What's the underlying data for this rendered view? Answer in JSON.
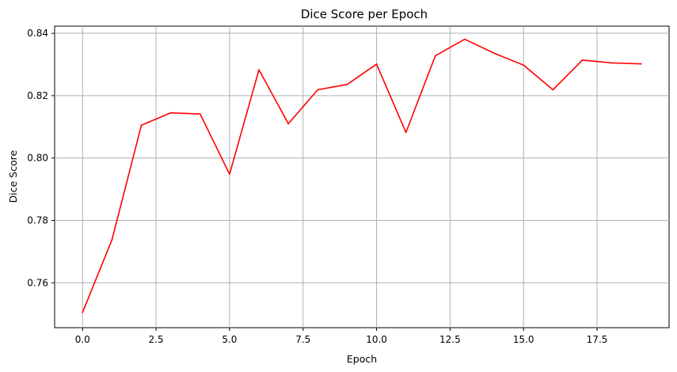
{
  "chart_data": {
    "type": "line",
    "title": "Dice Score per Epoch",
    "xlabel": "Epoch",
    "ylabel": "Dice Score",
    "xlim": [
      -0.95,
      19.95
    ],
    "ylim": [
      0.7456,
      0.8423
    ],
    "x_ticks": [
      0.0,
      2.5,
      5.0,
      7.5,
      10.0,
      12.5,
      15.0,
      17.5
    ],
    "x_tick_labels": [
      "0.0",
      "2.5",
      "5.0",
      "7.5",
      "10.0",
      "12.5",
      "15.0",
      "17.5"
    ],
    "y_ticks": [
      0.76,
      0.78,
      0.8,
      0.82,
      0.84
    ],
    "y_tick_labels": [
      "0.76",
      "0.78",
      "0.80",
      "0.82",
      "0.84"
    ],
    "grid": true,
    "legend": "none",
    "series": [
      {
        "color": "#ff0000",
        "x": [
          0,
          1,
          2,
          3,
          4,
          5,
          6,
          7,
          8,
          9,
          10,
          11,
          12,
          13,
          14,
          15,
          16,
          17,
          18,
          19
        ],
        "y": [
          0.7505,
          0.7738,
          0.8105,
          0.8145,
          0.8141,
          0.7948,
          0.8283,
          0.811,
          0.8219,
          0.8236,
          0.8301,
          0.8082,
          0.8328,
          0.8381,
          0.8336,
          0.8298,
          0.8219,
          0.8314,
          0.8305,
          0.8302
        ]
      }
    ]
  }
}
